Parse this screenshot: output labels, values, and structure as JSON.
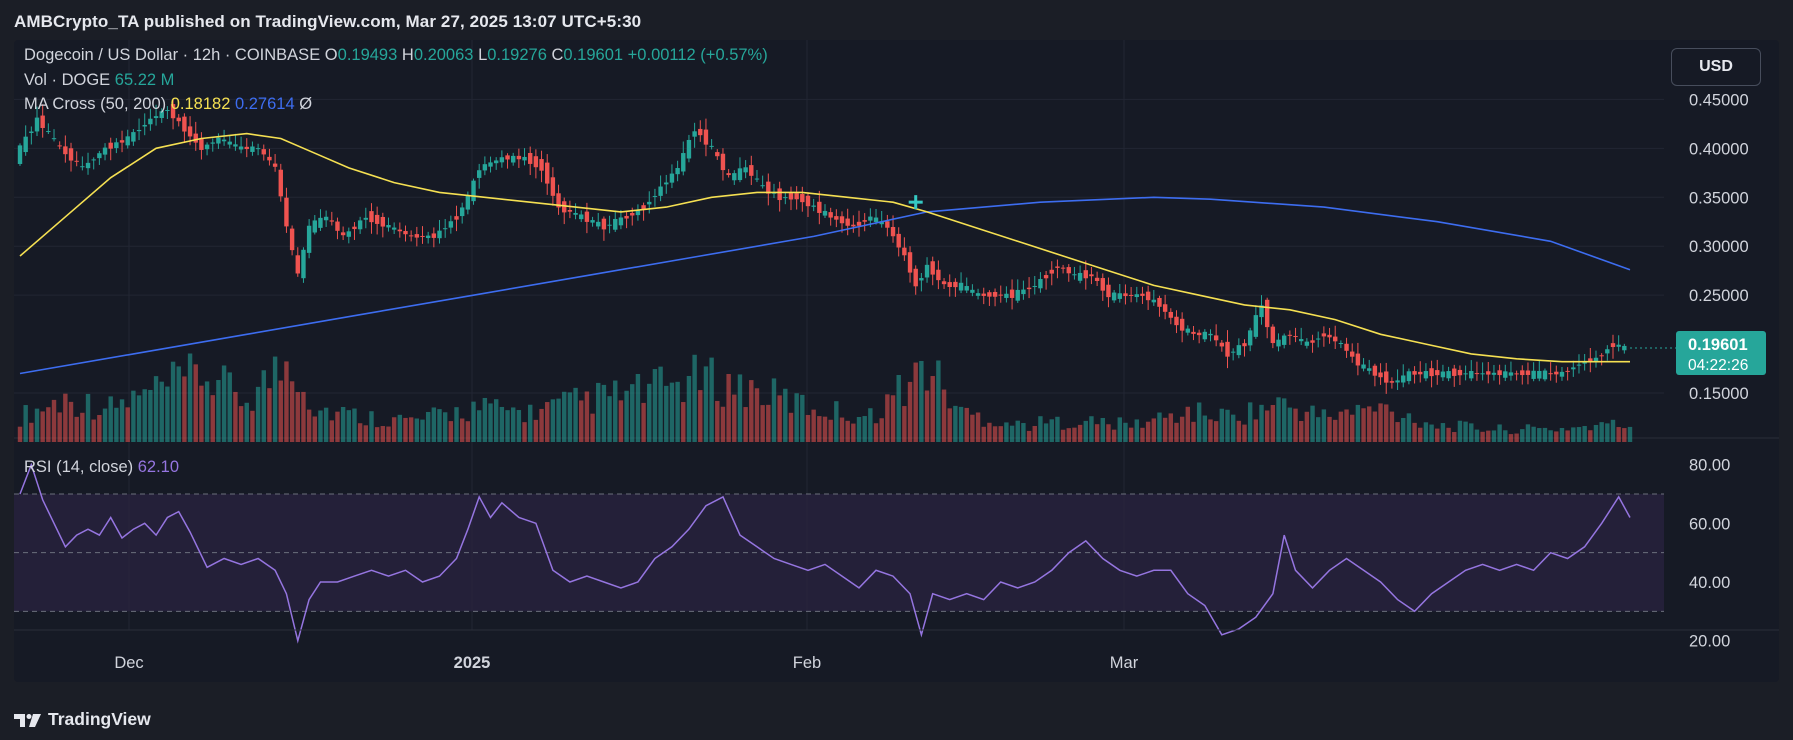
{
  "attribution": "AMBCrypto_TA published on TradingView.com, Mar 27, 2025 13:07 UTC+5:30",
  "brand": "TradingView",
  "currency_button": "USD",
  "legend": {
    "symbol": "Dogecoin / US Dollar · 12h · COINBASE",
    "o_label": "O",
    "o_value": "0.19493",
    "h_label": "H",
    "h_value": "0.20063",
    "l_label": "L",
    "l_value": "0.19276",
    "c_label": "C",
    "c_value": "0.19601",
    "change": "+0.00112 (+0.57%)",
    "vol_label": "Vol · DOGE",
    "vol_value": "65.22 M",
    "ma_label": "MA Cross (50, 200)",
    "ma_50": "0.18182",
    "ma_200": "0.27614",
    "ma_symbol": "Ø",
    "rsi_label": "RSI (14, close)",
    "rsi_value": "62.10"
  },
  "colors": {
    "up": "#26a69a",
    "down": "#ef5350",
    "ma50": "#f5e052",
    "ma200": "#3d6df0",
    "rsi": "#9575e0",
    "background": "#161a25"
  },
  "chart_data": {
    "type": "candlestick",
    "symbol": "Dogecoin / US Dollar",
    "interval": "12h",
    "exchange": "COINBASE",
    "x_tick_labels": [
      "Dec",
      "2025",
      "Feb",
      "Mar"
    ],
    "price_axis": {
      "ticks": [
        "0.45000",
        "0.40000",
        "0.35000",
        "0.30000",
        "0.25000",
        "0.15000"
      ],
      "range": [
        0.1,
        0.48
      ]
    },
    "rsi_axis": {
      "ticks": [
        "80.00",
        "60.00",
        "40.00",
        "20.00"
      ],
      "range": [
        10,
        85
      ],
      "bands": [
        30,
        50,
        70
      ]
    },
    "last_price": "0.19601",
    "countdown": "04:22:26",
    "ma_cross_marker": {
      "date": "Feb 2",
      "price": 0.345
    },
    "price_path": [
      [
        0,
        0.39
      ],
      [
        4,
        0.43
      ],
      [
        8,
        0.4
      ],
      [
        12,
        0.38
      ],
      [
        16,
        0.4
      ],
      [
        20,
        0.41
      ],
      [
        24,
        0.43
      ],
      [
        27,
        0.44
      ],
      [
        30,
        0.42
      ],
      [
        33,
        0.4
      ],
      [
        36,
        0.41
      ],
      [
        40,
        0.4
      ],
      [
        43,
        0.4
      ],
      [
        46,
        0.38
      ],
      [
        48,
        0.32
      ],
      [
        50,
        0.27
      ],
      [
        52,
        0.32
      ],
      [
        55,
        0.33
      ],
      [
        58,
        0.31
      ],
      [
        62,
        0.33
      ],
      [
        66,
        0.32
      ],
      [
        70,
        0.31
      ],
      [
        74,
        0.31
      ],
      [
        78,
        0.33
      ],
      [
        80,
        0.35
      ],
      [
        82,
        0.38
      ],
      [
        86,
        0.39
      ],
      [
        90,
        0.39
      ],
      [
        93,
        0.38
      ],
      [
        96,
        0.34
      ],
      [
        100,
        0.33
      ],
      [
        104,
        0.32
      ],
      [
        108,
        0.33
      ],
      [
        111,
        0.34
      ],
      [
        114,
        0.36
      ],
      [
        117,
        0.38
      ],
      [
        120,
        0.42
      ],
      [
        123,
        0.4
      ],
      [
        126,
        0.37
      ],
      [
        129,
        0.38
      ],
      [
        132,
        0.36
      ],
      [
        135,
        0.35
      ],
      [
        138,
        0.35
      ],
      [
        141,
        0.34
      ],
      [
        144,
        0.33
      ],
      [
        148,
        0.32
      ],
      [
        151,
        0.33
      ],
      [
        154,
        0.32
      ],
      [
        157,
        0.29
      ],
      [
        159,
        0.26
      ],
      [
        161,
        0.28
      ],
      [
        164,
        0.26
      ],
      [
        167,
        0.26
      ],
      [
        170,
        0.25
      ],
      [
        173,
        0.25
      ],
      [
        176,
        0.25
      ],
      [
        180,
        0.26
      ],
      [
        184,
        0.28
      ],
      [
        187,
        0.27
      ],
      [
        190,
        0.27
      ],
      [
        193,
        0.25
      ],
      [
        196,
        0.25
      ],
      [
        199,
        0.25
      ],
      [
        202,
        0.24
      ],
      [
        205,
        0.22
      ],
      [
        208,
        0.21
      ],
      [
        211,
        0.21
      ],
      [
        214,
        0.19
      ],
      [
        217,
        0.2
      ],
      [
        220,
        0.24
      ],
      [
        222,
        0.2
      ],
      [
        225,
        0.21
      ],
      [
        228,
        0.2
      ],
      [
        231,
        0.21
      ],
      [
        234,
        0.2
      ],
      [
        237,
        0.18
      ],
      [
        240,
        0.17
      ],
      [
        243,
        0.16
      ],
      [
        246,
        0.17
      ],
      [
        249,
        0.17
      ],
      [
        252,
        0.17
      ],
      [
        255,
        0.17
      ],
      [
        258,
        0.17
      ],
      [
        261,
        0.17
      ],
      [
        264,
        0.17
      ],
      [
        267,
        0.17
      ],
      [
        270,
        0.17
      ],
      [
        273,
        0.17
      ],
      [
        276,
        0.18
      ],
      [
        279,
        0.185
      ],
      [
        282,
        0.2
      ],
      [
        284,
        0.196
      ]
    ],
    "ma50_path": [
      [
        0,
        0.29
      ],
      [
        8,
        0.33
      ],
      [
        16,
        0.37
      ],
      [
        24,
        0.4
      ],
      [
        32,
        0.41
      ],
      [
        40,
        0.415
      ],
      [
        46,
        0.41
      ],
      [
        52,
        0.395
      ],
      [
        58,
        0.38
      ],
      [
        66,
        0.365
      ],
      [
        74,
        0.355
      ],
      [
        82,
        0.35
      ],
      [
        90,
        0.345
      ],
      [
        98,
        0.34
      ],
      [
        106,
        0.335
      ],
      [
        114,
        0.34
      ],
      [
        122,
        0.35
      ],
      [
        130,
        0.355
      ],
      [
        138,
        0.355
      ],
      [
        146,
        0.35
      ],
      [
        154,
        0.345
      ],
      [
        160,
        0.335
      ],
      [
        168,
        0.32
      ],
      [
        176,
        0.305
      ],
      [
        184,
        0.29
      ],
      [
        192,
        0.275
      ],
      [
        200,
        0.26
      ],
      [
        208,
        0.25
      ],
      [
        216,
        0.24
      ],
      [
        224,
        0.235
      ],
      [
        232,
        0.225
      ],
      [
        240,
        0.21
      ],
      [
        248,
        0.2
      ],
      [
        256,
        0.19
      ],
      [
        264,
        0.185
      ],
      [
        272,
        0.182
      ],
      [
        284,
        0.182
      ]
    ],
    "ma200_path": [
      [
        0,
        0.17
      ],
      [
        20,
        0.19
      ],
      [
        40,
        0.21
      ],
      [
        60,
        0.23
      ],
      [
        80,
        0.25
      ],
      [
        100,
        0.27
      ],
      [
        120,
        0.29
      ],
      [
        140,
        0.31
      ],
      [
        160,
        0.335
      ],
      [
        180,
        0.345
      ],
      [
        200,
        0.35
      ],
      [
        210,
        0.348
      ],
      [
        230,
        0.34
      ],
      [
        250,
        0.325
      ],
      [
        270,
        0.305
      ],
      [
        284,
        0.276
      ]
    ],
    "volume_path": [
      [
        0,
        0.3
      ],
      [
        8,
        0.5
      ],
      [
        16,
        0.4
      ],
      [
        24,
        0.6
      ],
      [
        32,
        0.8
      ],
      [
        40,
        0.5
      ],
      [
        48,
        1.0
      ],
      [
        52,
        0.4
      ],
      [
        60,
        0.3
      ],
      [
        70,
        0.25
      ],
      [
        80,
        0.4
      ],
      [
        90,
        0.35
      ],
      [
        100,
        0.5
      ],
      [
        110,
        0.6
      ],
      [
        120,
        0.75
      ],
      [
        130,
        0.6
      ],
      [
        140,
        0.4
      ],
      [
        150,
        0.3
      ],
      [
        160,
        0.9
      ],
      [
        166,
        0.35
      ],
      [
        176,
        0.2
      ],
      [
        186,
        0.25
      ],
      [
        196,
        0.2
      ],
      [
        206,
        0.35
      ],
      [
        214,
        0.3
      ],
      [
        222,
        0.45
      ],
      [
        230,
        0.3
      ],
      [
        240,
        0.4
      ],
      [
        250,
        0.2
      ],
      [
        260,
        0.15
      ],
      [
        270,
        0.15
      ],
      [
        280,
        0.2
      ],
      [
        284,
        0.2
      ]
    ],
    "rsi_path": [
      [
        0,
        70
      ],
      [
        2,
        80
      ],
      [
        4,
        68
      ],
      [
        6,
        60
      ],
      [
        8,
        52
      ],
      [
        10,
        56
      ],
      [
        12,
        58
      ],
      [
        14,
        56
      ],
      [
        16,
        62
      ],
      [
        18,
        55
      ],
      [
        20,
        58
      ],
      [
        22,
        60
      ],
      [
        24,
        56
      ],
      [
        26,
        62
      ],
      [
        28,
        64
      ],
      [
        30,
        57
      ],
      [
        33,
        45
      ],
      [
        36,
        48
      ],
      [
        39,
        46
      ],
      [
        42,
        48
      ],
      [
        45,
        44
      ],
      [
        47,
        36
      ],
      [
        49,
        20
      ],
      [
        51,
        34
      ],
      [
        53,
        40
      ],
      [
        56,
        40
      ],
      [
        59,
        42
      ],
      [
        62,
        44
      ],
      [
        65,
        42
      ],
      [
        68,
        44
      ],
      [
        71,
        40
      ],
      [
        74,
        42
      ],
      [
        77,
        48
      ],
      [
        79,
        58
      ],
      [
        81,
        69
      ],
      [
        83,
        62
      ],
      [
        85,
        67
      ],
      [
        88,
        62
      ],
      [
        91,
        60
      ],
      [
        94,
        44
      ],
      [
        97,
        40
      ],
      [
        100,
        42
      ],
      [
        103,
        40
      ],
      [
        106,
        38
      ],
      [
        109,
        40
      ],
      [
        112,
        48
      ],
      [
        115,
        52
      ],
      [
        118,
        58
      ],
      [
        121,
        66
      ],
      [
        124,
        69
      ],
      [
        127,
        56
      ],
      [
        130,
        52
      ],
      [
        133,
        48
      ],
      [
        136,
        46
      ],
      [
        139,
        44
      ],
      [
        142,
        46
      ],
      [
        145,
        42
      ],
      [
        148,
        38
      ],
      [
        151,
        44
      ],
      [
        154,
        42
      ],
      [
        157,
        36
      ],
      [
        159,
        22
      ],
      [
        161,
        36
      ],
      [
        164,
        34
      ],
      [
        167,
        36
      ],
      [
        170,
        34
      ],
      [
        173,
        40
      ],
      [
        176,
        38
      ],
      [
        179,
        40
      ],
      [
        182,
        44
      ],
      [
        185,
        50
      ],
      [
        188,
        54
      ],
      [
        191,
        48
      ],
      [
        194,
        44
      ],
      [
        197,
        42
      ],
      [
        200,
        44
      ],
      [
        203,
        44
      ],
      [
        206,
        36
      ],
      [
        209,
        32
      ],
      [
        212,
        22
      ],
      [
        215,
        24
      ],
      [
        218,
        28
      ],
      [
        221,
        36
      ],
      [
        223,
        56
      ],
      [
        225,
        44
      ],
      [
        228,
        38
      ],
      [
        231,
        44
      ],
      [
        234,
        48
      ],
      [
        237,
        44
      ],
      [
        240,
        40
      ],
      [
        243,
        34
      ],
      [
        246,
        30
      ],
      [
        249,
        36
      ],
      [
        252,
        40
      ],
      [
        255,
        44
      ],
      [
        258,
        46
      ],
      [
        261,
        44
      ],
      [
        264,
        46
      ],
      [
        267,
        44
      ],
      [
        270,
        50
      ],
      [
        273,
        48
      ],
      [
        276,
        52
      ],
      [
        279,
        60
      ],
      [
        282,
        69
      ],
      [
        284,
        62
      ]
    ],
    "x_range": [
      0,
      284
    ]
  }
}
